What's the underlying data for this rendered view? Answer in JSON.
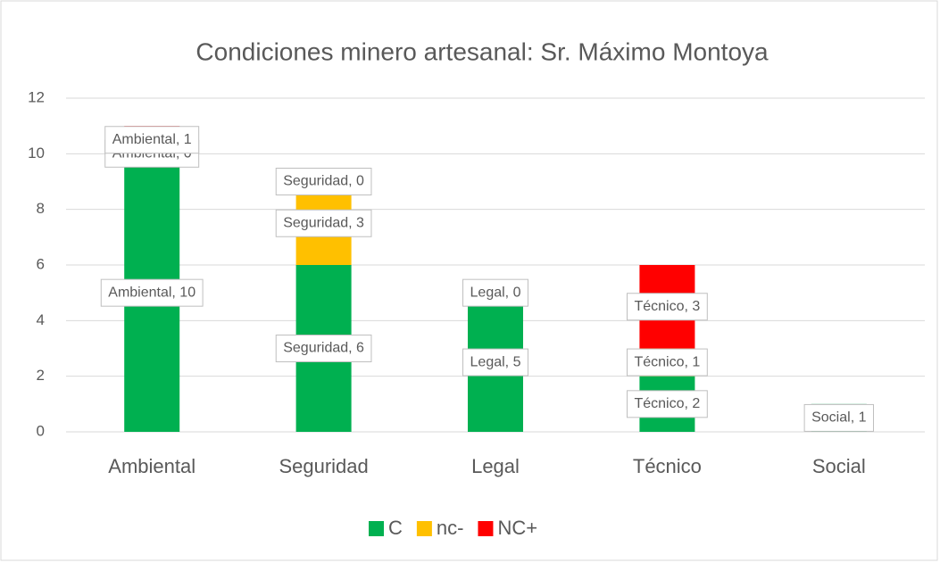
{
  "chart_data": {
    "type": "stacked_bar",
    "title": "Condiciones minero artesanal: Sr. Máximo Montoya",
    "categories": [
      "Ambiental",
      "Seguridad",
      "Legal",
      "Técnico",
      "Social"
    ],
    "series": [
      {
        "name": "C",
        "color": "#00b050",
        "values": [
          10,
          6,
          5,
          2,
          1
        ],
        "value_labels": [
          "Ambiental, 10",
          "Seguridad, 6",
          "Legal, 5",
          "Técnico, 2",
          "Social, 1"
        ]
      },
      {
        "name": "nc-",
        "color": "#ffc000",
        "values": [
          0,
          3,
          0,
          1,
          null
        ],
        "value_labels": [
          "Ambiental, 0",
          "Seguridad, 3",
          "Legal, 0",
          "Técnico, 1",
          null
        ]
      },
      {
        "name": "NC+",
        "color": "#ff0000",
        "values": [
          1,
          0,
          null,
          3,
          null
        ],
        "value_labels": [
          "Ambiental, 1",
          "Seguridad, 0",
          null,
          "Técnico, 3",
          null
        ]
      }
    ],
    "ylim": [
      0,
      12
    ],
    "yticks": [
      0,
      2,
      4,
      6,
      8,
      10,
      12
    ],
    "grid": true,
    "legend": "bottom"
  }
}
